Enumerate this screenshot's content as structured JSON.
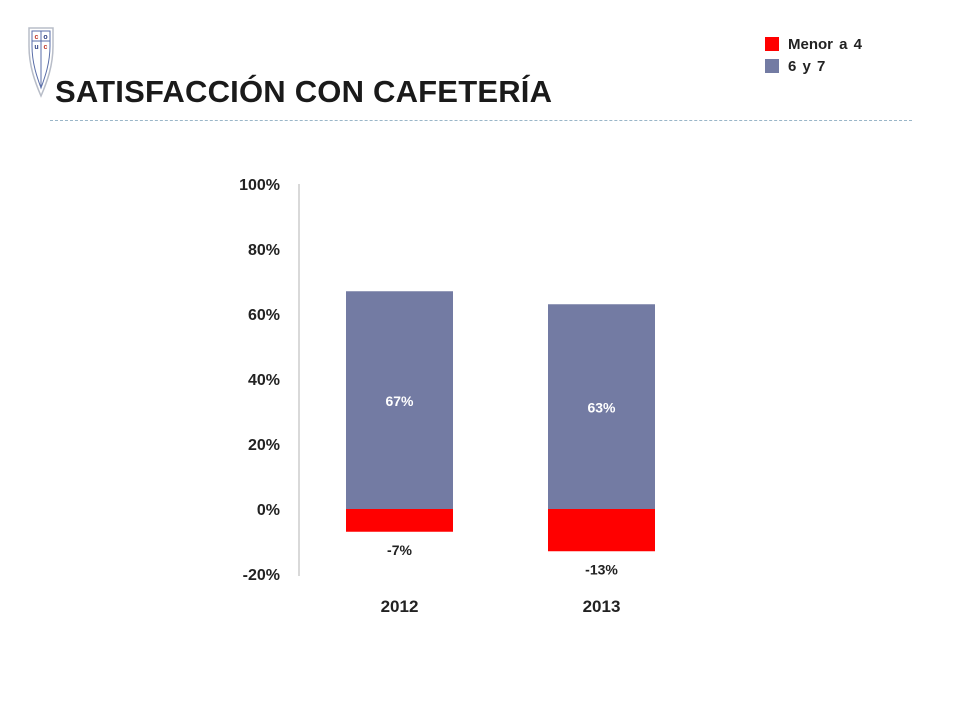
{
  "page": {
    "title": "SATISFACCIÓN CON CAFETERÍA"
  },
  "logo": {
    "letters": [
      "c",
      "o",
      "u",
      "c"
    ]
  },
  "colors": {
    "negative": "#ff0000",
    "positive": "#737ba3",
    "axis": "#d9d9d9",
    "text": "#222222"
  },
  "chart_data": {
    "type": "bar",
    "stacked": true,
    "categories": [
      "2012",
      "2013"
    ],
    "series": [
      {
        "name": "6 y 7",
        "color": "#737ba3",
        "values": [
          67,
          63
        ],
        "labels": [
          "67%",
          "63%"
        ]
      },
      {
        "name": "Menor a 4",
        "color": "#ff0000",
        "values": [
          -7,
          -13
        ],
        "labels": [
          "-7%",
          "-13%"
        ]
      }
    ],
    "yticks": [
      "100%",
      "80%",
      "60%",
      "40%",
      "20%",
      "0%",
      "-20%"
    ],
    "ylim": [
      -20,
      100
    ],
    "grid": false,
    "legend_position": "top-right",
    "legend": [
      {
        "label": "Menor a 4",
        "color": "#ff0000"
      },
      {
        "label": "6 y 7",
        "color": "#737ba3"
      }
    ]
  }
}
